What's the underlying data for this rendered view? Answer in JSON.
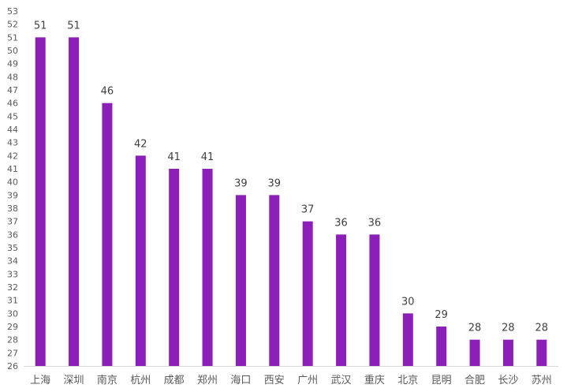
{
  "chart_data": {
    "type": "bar",
    "title": "",
    "xlabel": "",
    "ylabel": "",
    "categories": [
      "上海",
      "深圳",
      "南京",
      "杭州",
      "成都",
      "郑州",
      "海口",
      "西安",
      "广州",
      "武汉",
      "重庆",
      "北京",
      "昆明",
      "合肥",
      "长沙",
      "苏州"
    ],
    "values": [
      51,
      51,
      46,
      42,
      41,
      41,
      39,
      39,
      37,
      36,
      36,
      30,
      29,
      28,
      28,
      28
    ],
    "ylim": [
      26,
      53
    ],
    "ytick_step": 1,
    "data_labels": true,
    "grid": false,
    "legend": "none",
    "bar_color": "#8B1FB8",
    "axis_color": "#d9d9d9"
  }
}
